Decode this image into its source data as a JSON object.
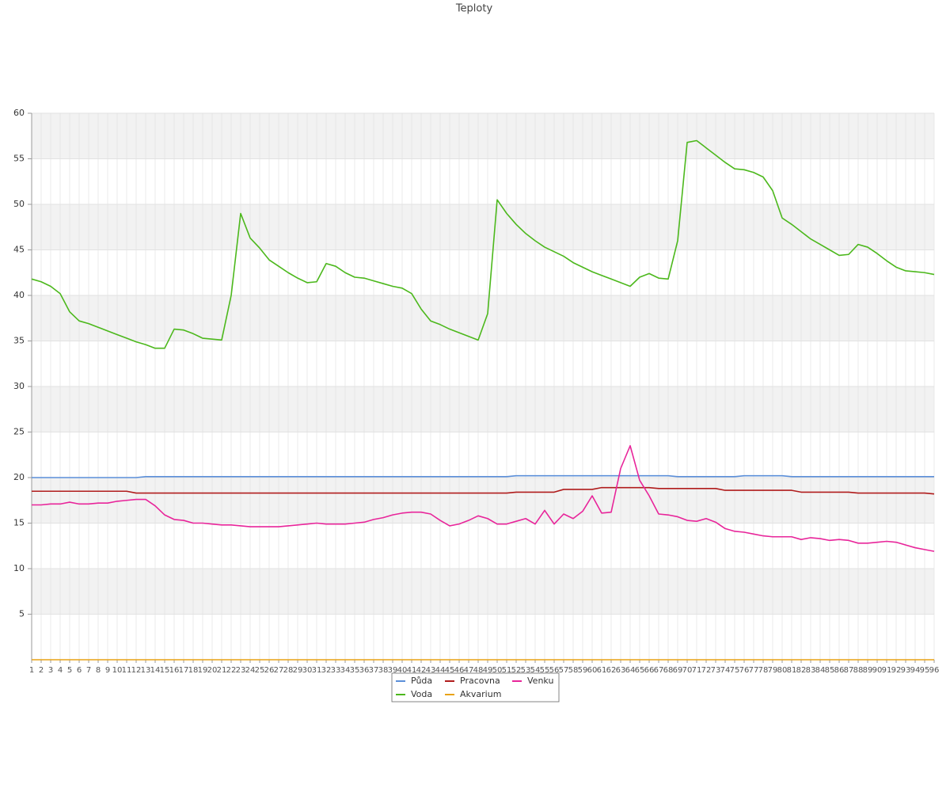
{
  "chart_data": {
    "type": "line",
    "title": "Teploty",
    "categories": [
      1,
      2,
      3,
      4,
      5,
      6,
      7,
      8,
      9,
      10,
      11,
      12,
      13,
      14,
      15,
      16,
      17,
      18,
      19,
      20,
      21,
      22,
      23,
      24,
      25,
      26,
      27,
      28,
      29,
      30,
      31,
      32,
      33,
      34,
      35,
      36,
      37,
      38,
      39,
      40,
      41,
      42,
      43,
      44,
      45,
      46,
      47,
      48,
      49,
      50,
      51,
      52,
      53,
      54,
      55,
      56,
      57,
      58,
      59,
      60,
      61,
      62,
      63,
      64,
      65,
      66,
      67,
      68,
      69,
      70,
      71,
      72,
      73,
      74,
      75,
      76,
      77,
      78,
      79,
      80,
      81,
      82,
      83,
      84,
      85,
      86,
      87,
      88,
      89,
      90,
      91,
      92,
      93,
      94,
      95,
      96
    ],
    "ylim": [
      0,
      60
    ],
    "yticks": [
      5,
      10,
      15,
      20,
      25,
      30,
      35,
      40,
      45,
      50,
      55,
      60
    ],
    "grid": true,
    "series": [
      {
        "name": "Půda",
        "color": "#5b8fd9",
        "values": [
          20.0,
          20.0,
          20.0,
          20.0,
          20.0,
          20.0,
          20.0,
          20.0,
          20.0,
          20.0,
          20.0,
          20.0,
          20.1,
          20.1,
          20.1,
          20.1,
          20.1,
          20.1,
          20.1,
          20.1,
          20.1,
          20.1,
          20.1,
          20.1,
          20.1,
          20.1,
          20.1,
          20.1,
          20.1,
          20.1,
          20.1,
          20.1,
          20.1,
          20.1,
          20.1,
          20.1,
          20.1,
          20.1,
          20.1,
          20.1,
          20.1,
          20.1,
          20.1,
          20.1,
          20.1,
          20.1,
          20.1,
          20.1,
          20.1,
          20.1,
          20.1,
          20.2,
          20.2,
          20.2,
          20.2,
          20.2,
          20.2,
          20.2,
          20.2,
          20.2,
          20.2,
          20.2,
          20.2,
          20.2,
          20.2,
          20.2,
          20.2,
          20.2,
          20.1,
          20.1,
          20.1,
          20.1,
          20.1,
          20.1,
          20.1,
          20.2,
          20.2,
          20.2,
          20.2,
          20.2,
          20.1,
          20.1,
          20.1,
          20.1,
          20.1,
          20.1,
          20.1,
          20.1,
          20.1,
          20.1,
          20.1,
          20.1,
          20.1,
          20.1,
          20.1,
          20.1
        ]
      },
      {
        "name": "Pracovna",
        "color": "#b01c1c",
        "values": [
          18.5,
          18.5,
          18.5,
          18.5,
          18.5,
          18.5,
          18.5,
          18.5,
          18.5,
          18.5,
          18.5,
          18.3,
          18.3,
          18.3,
          18.3,
          18.3,
          18.3,
          18.3,
          18.3,
          18.3,
          18.3,
          18.3,
          18.3,
          18.3,
          18.3,
          18.3,
          18.3,
          18.3,
          18.3,
          18.3,
          18.3,
          18.3,
          18.3,
          18.3,
          18.3,
          18.3,
          18.3,
          18.3,
          18.3,
          18.3,
          18.3,
          18.3,
          18.3,
          18.3,
          18.3,
          18.3,
          18.3,
          18.3,
          18.3,
          18.3,
          18.3,
          18.4,
          18.4,
          18.4,
          18.4,
          18.4,
          18.7,
          18.7,
          18.7,
          18.7,
          18.9,
          18.9,
          18.9,
          18.9,
          18.9,
          18.9,
          18.8,
          18.8,
          18.8,
          18.8,
          18.8,
          18.8,
          18.8,
          18.6,
          18.6,
          18.6,
          18.6,
          18.6,
          18.6,
          18.6,
          18.6,
          18.4,
          18.4,
          18.4,
          18.4,
          18.4,
          18.4,
          18.3,
          18.3,
          18.3,
          18.3,
          18.3,
          18.3,
          18.3,
          18.3,
          18.2
        ]
      },
      {
        "name": "Venku",
        "color": "#e8259a",
        "values": [
          17.0,
          17.0,
          17.1,
          17.1,
          17.3,
          17.1,
          17.1,
          17.2,
          17.2,
          17.4,
          17.5,
          17.6,
          17.6,
          16.9,
          15.9,
          15.4,
          15.3,
          15.0,
          15.0,
          14.9,
          14.8,
          14.8,
          14.7,
          14.6,
          14.6,
          14.6,
          14.6,
          14.7,
          14.8,
          14.9,
          15.0,
          14.9,
          14.9,
          14.9,
          15.0,
          15.1,
          15.4,
          15.6,
          15.9,
          16.1,
          16.2,
          16.2,
          16.0,
          15.3,
          14.7,
          14.9,
          15.3,
          15.8,
          15.5,
          14.9,
          14.9,
          15.2,
          15.5,
          14.9,
          16.4,
          14.9,
          16.0,
          15.5,
          16.3,
          18.0,
          16.1,
          16.2,
          21.0,
          23.5,
          19.7,
          18.0,
          16.0,
          15.9,
          15.7,
          15.3,
          15.2,
          15.5,
          15.1,
          14.4,
          14.1,
          14.0,
          13.8,
          13.6,
          13.5,
          13.5,
          13.5,
          13.2,
          13.4,
          13.3,
          13.1,
          13.2,
          13.1,
          12.8,
          12.8,
          12.9,
          13.0,
          12.9,
          12.6,
          12.3,
          12.1,
          11.9
        ]
      },
      {
        "name": "Voda",
        "color": "#4cb81c",
        "values": [
          41.8,
          41.5,
          41.0,
          40.2,
          38.2,
          37.2,
          36.9,
          36.5,
          36.1,
          35.7,
          35.3,
          34.9,
          34.6,
          34.2,
          34.2,
          36.3,
          36.2,
          35.8,
          35.3,
          35.2,
          35.1,
          40.0,
          49.0,
          46.3,
          45.2,
          43.9,
          43.2,
          42.5,
          41.9,
          41.4,
          41.5,
          43.5,
          43.2,
          42.5,
          42.0,
          41.9,
          41.6,
          41.3,
          41.0,
          40.8,
          40.2,
          38.5,
          37.2,
          36.8,
          36.3,
          35.9,
          35.5,
          35.1,
          38.0,
          50.5,
          49.0,
          47.8,
          46.8,
          46.0,
          45.3,
          44.8,
          44.3,
          43.6,
          43.1,
          42.6,
          42.2,
          41.8,
          41.4,
          41.0,
          42.0,
          42.4,
          41.9,
          41.8,
          46.0,
          56.8,
          57.0,
          56.2,
          55.4,
          54.6,
          53.9,
          53.8,
          53.5,
          53.0,
          51.5,
          48.5,
          47.8,
          47.0,
          46.2,
          45.6,
          45.0,
          44.4,
          44.5,
          45.6,
          45.3,
          44.6,
          43.8,
          43.1,
          42.7,
          42.6,
          42.5,
          42.3
        ]
      },
      {
        "name": "Akvarium",
        "color": "#e8a317",
        "values": [
          0,
          0,
          0,
          0,
          0,
          0,
          0,
          0,
          0,
          0,
          0,
          0,
          0,
          0,
          0,
          0,
          0,
          0,
          0,
          0,
          0,
          0,
          0,
          0,
          0,
          0,
          0,
          0,
          0,
          0,
          0,
          0,
          0,
          0,
          0,
          0,
          0,
          0,
          0,
          0,
          0,
          0,
          0,
          0,
          0,
          0,
          0,
          0,
          0,
          0,
          0,
          0,
          0,
          0,
          0,
          0,
          0,
          0,
          0,
          0,
          0,
          0,
          0,
          0,
          0,
          0,
          0,
          0,
          0,
          0,
          0,
          0,
          0,
          0,
          0,
          0,
          0,
          0,
          0,
          0,
          0,
          0,
          0,
          0,
          0,
          0,
          0,
          0,
          0,
          0,
          0,
          0,
          0,
          0,
          0,
          0
        ]
      }
    ]
  }
}
